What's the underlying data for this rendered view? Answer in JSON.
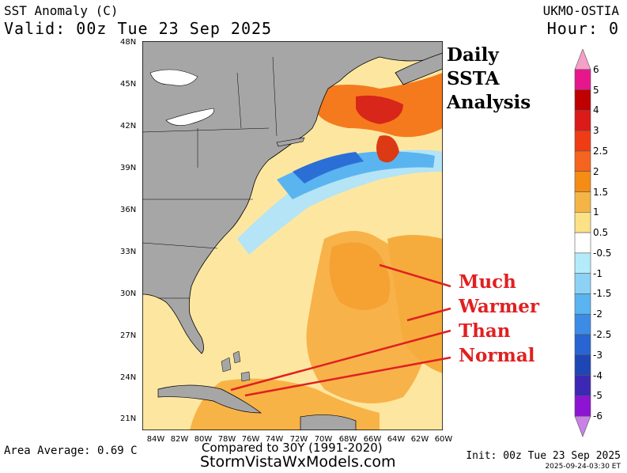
{
  "header": {
    "title": "SST Anomaly (C)",
    "valid": "Valid: 00z Tue 23 Sep 2025",
    "model": "UKMO-OSTIA",
    "hour": "Hour: 0"
  },
  "annotations": {
    "daily": "Daily",
    "ssta": "SSTA",
    "analysis": "Analysis",
    "much": "Much",
    "warmer": "Warmer",
    "than": "Than",
    "normal": "Normal"
  },
  "footer": {
    "area_average": "Area Average: 0.69 C",
    "compared": "Compared to 30Y (1991-2020)",
    "site": "StormVistaWxModels.com",
    "init": "Init: 00z Tue 23 Sep 2025",
    "stamp": "2025-09-24-03:30 ET"
  },
  "latitude_labels": [
    "48N",
    "45N",
    "42N",
    "39N",
    "36N",
    "33N",
    "30N",
    "27N",
    "24N",
    "21N"
  ],
  "longitude_labels": [
    "84W",
    "82W",
    "80W",
    "78W",
    "76W",
    "74W",
    "72W",
    "70W",
    "68W",
    "66W",
    "64W",
    "62W",
    "60W"
  ],
  "colorbar": {
    "labels": [
      "6",
      "5",
      "4",
      "3",
      "2.5",
      "2",
      "1.5",
      "1",
      "0.5",
      "-0.5",
      "-1",
      "-1.5",
      "-2",
      "-2.5",
      "-3",
      "-4",
      "-5",
      "-6"
    ],
    "colors": [
      "#f5a0c8",
      "#e8168c",
      "#c00000",
      "#dc1a1a",
      "#f03c14",
      "#f5641e",
      "#f58c14",
      "#f5b446",
      "#fde187",
      "#ffffff",
      "#b4ebfa",
      "#8cd2f5",
      "#5ab4f0",
      "#3c8ce6",
      "#2864d2",
      "#1e46b4",
      "#3c28b4",
      "#8c14d2",
      "#c882e6"
    ]
  }
}
